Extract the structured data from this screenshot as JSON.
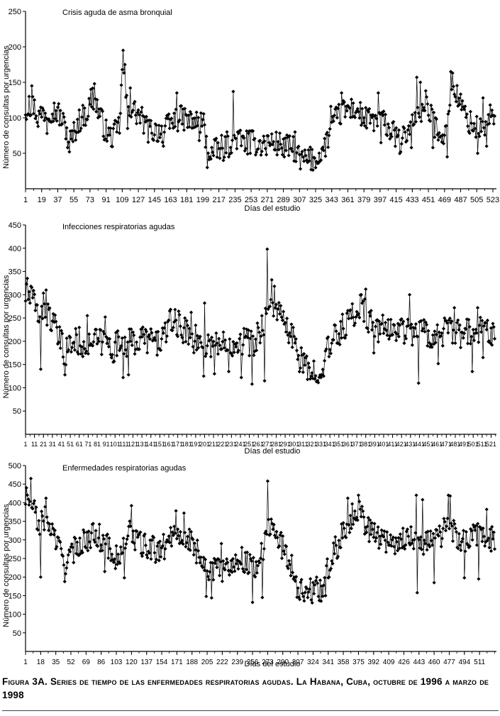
{
  "caption": "Figura 3A. Series de tiempo de las enfermedades respiratorias agudas. La Habana, Cuba, octubre de 1996 a marzo de 1998",
  "chart_data": [
    {
      "type": "line",
      "title": "Crisis aguda de asma bronquial",
      "xlabel": "Días del estudio",
      "ylabel": "Número de consultas por urgencias",
      "xlim": [
        1,
        527
      ],
      "ylim": [
        0,
        250
      ],
      "yticks": [
        50,
        100,
        150,
        200,
        250
      ],
      "xticks": [
        "1",
        "19",
        "37",
        "55",
        "73",
        "91",
        "109",
        "127",
        "145",
        "163",
        "181",
        "199",
        "217",
        "235",
        "253",
        "271",
        "289",
        "307",
        "325",
        "343",
        "361",
        "379",
        "397",
        "415",
        "433",
        "451",
        "469",
        "487",
        "505",
        "523"
      ],
      "marker": "diamond",
      "anchors": [
        [
          1,
          112
        ],
        [
          10,
          118
        ],
        [
          15,
          100
        ],
        [
          20,
          108
        ],
        [
          28,
          112
        ],
        [
          37,
          108
        ],
        [
          45,
          88
        ],
        [
          52,
          68
        ],
        [
          60,
          95
        ],
        [
          70,
          108
        ],
        [
          76,
          130
        ],
        [
          82,
          112
        ],
        [
          90,
          82
        ],
        [
          96,
          72
        ],
        [
          102,
          80
        ],
        [
          106,
          90
        ],
        [
          110,
          185
        ],
        [
          114,
          118
        ],
        [
          122,
          110
        ],
        [
          130,
          100
        ],
        [
          138,
          82
        ],
        [
          146,
          82
        ],
        [
          156,
          82
        ],
        [
          166,
          96
        ],
        [
          176,
          100
        ],
        [
          186,
          94
        ],
        [
          196,
          94
        ],
        [
          200,
          92
        ],
        [
          204,
          55
        ],
        [
          212,
          52
        ],
        [
          220,
          58
        ],
        [
          228,
          65
        ],
        [
          236,
          72
        ],
        [
          244,
          66
        ],
        [
          254,
          65
        ],
        [
          264,
          63
        ],
        [
          274,
          66
        ],
        [
          284,
          63
        ],
        [
          294,
          58
        ],
        [
          302,
          56
        ],
        [
          306,
          45
        ],
        [
          312,
          40
        ],
        [
          318,
          42
        ],
        [
          326,
          40
        ],
        [
          334,
          55
        ],
        [
          340,
          75
        ],
        [
          346,
          95
        ],
        [
          352,
          105
        ],
        [
          360,
          112
        ],
        [
          370,
          112
        ],
        [
          380,
          98
        ],
        [
          390,
          96
        ],
        [
          400,
          95
        ],
        [
          410,
          80
        ],
        [
          420,
          65
        ],
        [
          426,
          78
        ],
        [
          432,
          88
        ],
        [
          440,
          110
        ],
        [
          450,
          112
        ],
        [
          458,
          90
        ],
        [
          466,
          80
        ],
        [
          470,
          72
        ],
        [
          476,
          145
        ],
        [
          482,
          135
        ],
        [
          488,
          115
        ],
        [
          496,
          95
        ],
        [
          504,
          85
        ],
        [
          512,
          85
        ],
        [
          518,
          95
        ],
        [
          526,
          95
        ]
      ],
      "peaks": [
        [
          5,
          130
        ],
        [
          8,
          145
        ],
        [
          74,
          140
        ],
        [
          78,
          148
        ],
        [
          110,
          195
        ],
        [
          112,
          175
        ],
        [
          118,
          142
        ],
        [
          170,
          135
        ],
        [
          233,
          137
        ],
        [
          302,
          80
        ],
        [
          342,
          116
        ],
        [
          354,
          135
        ],
        [
          395,
          135
        ],
        [
          432,
          148
        ],
        [
          438,
          157
        ],
        [
          442,
          150
        ],
        [
          448,
          138
        ],
        [
          476,
          165
        ],
        [
          478,
          163
        ],
        [
          512,
          128
        ],
        [
          520,
          118
        ]
      ],
      "troughs": [
        [
          25,
          78
        ],
        [
          48,
          58
        ],
        [
          50,
          52
        ],
        [
          115,
          85
        ],
        [
          155,
          60
        ],
        [
          195,
          68
        ],
        [
          204,
          30
        ],
        [
          208,
          42
        ],
        [
          222,
          40
        ],
        [
          228,
          45
        ],
        [
          252,
          50
        ],
        [
          270,
          48
        ],
        [
          290,
          45
        ],
        [
          308,
          28
        ],
        [
          328,
          36
        ],
        [
          398,
          65
        ],
        [
          420,
          52
        ],
        [
          432,
          58
        ],
        [
          456,
          58
        ],
        [
          472,
          45
        ],
        [
          506,
          50
        ],
        [
          516,
          60
        ]
      ]
    },
    {
      "type": "line",
      "title": "Infecciones respiratorias agudas",
      "xlabel": "Días del estudio",
      "ylabel": "Número de consultas por urgencias",
      "xlim": [
        1,
        527
      ],
      "ylim": [
        0,
        450
      ],
      "yticks": [
        50,
        100,
        150,
        200,
        250,
        300,
        350,
        400,
        450
      ],
      "xticks": [
        "1",
        "11",
        "21",
        "31",
        "41",
        "51",
        "61",
        "71",
        "81",
        "91",
        "101",
        "111",
        "121",
        "131",
        "141",
        "151",
        "161",
        "171",
        "181",
        "191",
        "201",
        "211",
        "221",
        "231",
        "241",
        "251",
        "261",
        "271",
        "281",
        "291",
        "301",
        "311",
        "321",
        "331",
        "341",
        "351",
        "361",
        "371",
        "381",
        "391",
        "401",
        "411",
        "421",
        "431",
        "441",
        "451",
        "461",
        "471",
        "481",
        "491",
        "501",
        "511",
        "521"
      ],
      "marker": "diamond",
      "anchors": [
        [
          1,
          300
        ],
        [
          8,
          290
        ],
        [
          15,
          260
        ],
        [
          22,
          275
        ],
        [
          30,
          245
        ],
        [
          38,
          205
        ],
        [
          45,
          175
        ],
        [
          52,
          195
        ],
        [
          60,
          200
        ],
        [
          70,
          195
        ],
        [
          80,
          200
        ],
        [
          90,
          195
        ],
        [
          100,
          185
        ],
        [
          108,
          200
        ],
        [
          116,
          195
        ],
        [
          124,
          200
        ],
        [
          132,
          205
        ],
        [
          140,
          205
        ],
        [
          148,
          195
        ],
        [
          156,
          215
        ],
        [
          164,
          240
        ],
        [
          172,
          235
        ],
        [
          180,
          220
        ],
        [
          190,
          205
        ],
        [
          200,
          190
        ],
        [
          210,
          195
        ],
        [
          220,
          190
        ],
        [
          230,
          195
        ],
        [
          240,
          205
        ],
        [
          250,
          200
        ],
        [
          256,
          190
        ],
        [
          262,
          220
        ],
        [
          268,
          250
        ],
        [
          272,
          260
        ],
        [
          278,
          280
        ],
        [
          284,
          260
        ],
        [
          290,
          235
        ],
        [
          296,
          215
        ],
        [
          302,
          195
        ],
        [
          308,
          160
        ],
        [
          314,
          140
        ],
        [
          320,
          135
        ],
        [
          326,
          140
        ],
        [
          332,
          145
        ],
        [
          338,
          175
        ],
        [
          344,
          200
        ],
        [
          352,
          220
        ],
        [
          360,
          240
        ],
        [
          368,
          260
        ],
        [
          376,
          270
        ],
        [
          384,
          250
        ],
        [
          392,
          230
        ],
        [
          400,
          225
        ],
        [
          410,
          225
        ],
        [
          420,
          230
        ],
        [
          430,
          220
        ],
        [
          440,
          230
        ],
        [
          450,
          215
        ],
        [
          460,
          210
        ],
        [
          470,
          225
        ],
        [
          480,
          215
        ],
        [
          490,
          215
        ],
        [
          500,
          220
        ],
        [
          510,
          225
        ],
        [
          518,
          230
        ],
        [
          525,
          215
        ]
      ],
      "peaks": [
        [
          3,
          335
        ],
        [
          7,
          318
        ],
        [
          24,
          310
        ],
        [
          70,
          255
        ],
        [
          90,
          252
        ],
        [
          168,
          268
        ],
        [
          186,
          262
        ],
        [
          201,
          282
        ],
        [
          271,
          398
        ],
        [
          276,
          332
        ],
        [
          279,
          318
        ],
        [
          376,
          300
        ],
        [
          381,
          312
        ],
        [
          430,
          300
        ],
        [
          480,
          272
        ],
        [
          506,
          272
        ]
      ],
      "troughs": [
        [
          18,
          140
        ],
        [
          45,
          128
        ],
        [
          110,
          122
        ],
        [
          116,
          128
        ],
        [
          200,
          125
        ],
        [
          212,
          130
        ],
        [
          228,
          135
        ],
        [
          242,
          122
        ],
        [
          254,
          108
        ],
        [
          268,
          115
        ],
        [
          316,
          118
        ],
        [
          322,
          120
        ],
        [
          390,
          175
        ],
        [
          440,
          110
        ],
        [
          462,
          152
        ],
        [
          500,
          135
        ],
        [
          512,
          165
        ]
      ]
    },
    {
      "type": "line",
      "title": "Enfermedades respiratorias agudas",
      "xlabel": "Días del estudio",
      "ylabel": "Número de consultas por urgencias",
      "xlim": [
        1,
        530
      ],
      "ylim": [
        0,
        500
      ],
      "yticks": [
        50,
        100,
        150,
        200,
        250,
        300,
        350,
        400,
        450,
        500
      ],
      "xticks": [
        "1",
        "18",
        "35",
        "52",
        "69",
        "86",
        "103",
        "120",
        "137",
        "154",
        "171",
        "188",
        "205",
        "222",
        "239",
        "256",
        "273",
        "290",
        "307",
        "324",
        "341",
        "358",
        "375",
        "392",
        "409",
        "426",
        "443",
        "460",
        "477",
        "494",
        "511"
      ],
      "marker": "diamond",
      "anchors": [
        [
          1,
          410
        ],
        [
          8,
          400
        ],
        [
          15,
          340
        ],
        [
          22,
          360
        ],
        [
          30,
          330
        ],
        [
          38,
          280
        ],
        [
          45,
          240
        ],
        [
          52,
          255
        ],
        [
          60,
          290
        ],
        [
          70,
          300
        ],
        [
          80,
          320
        ],
        [
          90,
          290
        ],
        [
          100,
          260
        ],
        [
          108,
          250
        ],
        [
          114,
          310
        ],
        [
          120,
          320
        ],
        [
          128,
          290
        ],
        [
          136,
          280
        ],
        [
          144,
          275
        ],
        [
          152,
          270
        ],
        [
          160,
          290
        ],
        [
          168,
          330
        ],
        [
          176,
          320
        ],
        [
          184,
          300
        ],
        [
          194,
          270
        ],
        [
          202,
          240
        ],
        [
          210,
          215
        ],
        [
          218,
          220
        ],
        [
          226,
          225
        ],
        [
          234,
          240
        ],
        [
          244,
          250
        ],
        [
          252,
          235
        ],
        [
          260,
          230
        ],
        [
          266,
          260
        ],
        [
          270,
          300
        ],
        [
          276,
          340
        ],
        [
          282,
          320
        ],
        [
          288,
          290
        ],
        [
          294,
          260
        ],
        [
          300,
          230
        ],
        [
          306,
          180
        ],
        [
          312,
          165
        ],
        [
          318,
          160
        ],
        [
          326,
          165
        ],
        [
          334,
          170
        ],
        [
          340,
          215
        ],
        [
          348,
          270
        ],
        [
          356,
          310
        ],
        [
          364,
          350
        ],
        [
          372,
          380
        ],
        [
          378,
          370
        ],
        [
          386,
          330
        ],
        [
          396,
          310
        ],
        [
          406,
          300
        ],
        [
          416,
          295
        ],
        [
          426,
          300
        ],
        [
          434,
          315
        ],
        [
          442,
          300
        ],
        [
          450,
          290
        ],
        [
          460,
          300
        ],
        [
          470,
          320
        ],
        [
          478,
          340
        ],
        [
          486,
          300
        ],
        [
          496,
          300
        ],
        [
          506,
          310
        ],
        [
          516,
          315
        ],
        [
          526,
          300
        ]
      ],
      "peaks": [
        [
          2,
          440
        ],
        [
          7,
          465
        ],
        [
          24,
          412
        ],
        [
          84,
          342
        ],
        [
          120,
          392
        ],
        [
          170,
          378
        ],
        [
          179,
          372
        ],
        [
          221,
          290
        ],
        [
          270,
          318
        ],
        [
          273,
          458
        ],
        [
          363,
          412
        ],
        [
          375,
          420
        ],
        [
          440,
          420
        ],
        [
          447,
          408
        ],
        [
          476,
          420
        ],
        [
          478,
          418
        ],
        [
          519,
          382
        ]
      ],
      "troughs": [
        [
          18,
          200
        ],
        [
          45,
          188
        ],
        [
          90,
          215
        ],
        [
          112,
          198
        ],
        [
          204,
          148
        ],
        [
          210,
          144
        ],
        [
          256,
          132
        ],
        [
          267,
          145
        ],
        [
          309,
          140
        ],
        [
          318,
          145
        ],
        [
          330,
          148
        ],
        [
          338,
          150
        ],
        [
          441,
          158
        ],
        [
          460,
          185
        ],
        [
          494,
          198
        ],
        [
          510,
          195
        ]
      ]
    }
  ]
}
